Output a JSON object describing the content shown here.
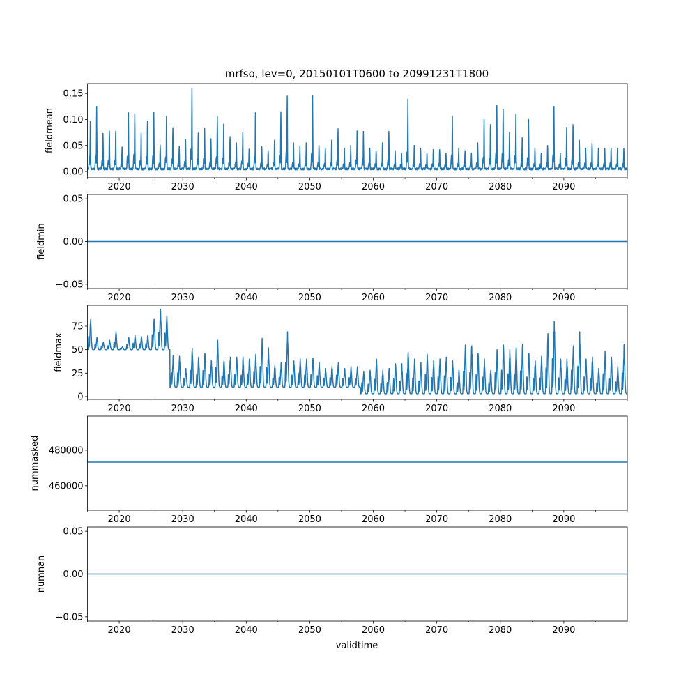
{
  "chart_data": {
    "type": "line",
    "title": "mrfso, lev=0, 20150101T0600 to 20991231T1800",
    "xlabel": "validtime",
    "xlim": [
      2015,
      2100
    ],
    "x_major_ticks": [
      2020,
      2030,
      2040,
      2050,
      2060,
      2070,
      2080,
      2090
    ],
    "x_tick_labels": [
      "2020",
      "2030",
      "2040",
      "2050",
      "2060",
      "2070",
      "2080",
      "2090"
    ],
    "x_minor_ticks": [
      2015,
      2025,
      2035,
      2045,
      2055,
      2065,
      2075,
      2085,
      2095,
      2100
    ],
    "line_color": "#1f77b4",
    "panels": [
      {
        "ylabel": "fieldmean",
        "ylim": [
          -0.012,
          0.169
        ],
        "yticks": [
          0.0,
          0.05,
          0.1,
          0.15
        ],
        "ytick_labels": [
          "0.00",
          "0.05",
          "0.10",
          "0.15"
        ],
        "kind": "seasonal",
        "baseline": 0.003,
        "years": [
          2015,
          2016,
          2017,
          2018,
          2019,
          2020,
          2021,
          2022,
          2023,
          2024,
          2025,
          2026,
          2027,
          2028,
          2029,
          2030,
          2031,
          2032,
          2033,
          2034,
          2035,
          2036,
          2037,
          2038,
          2039,
          2040,
          2041,
          2042,
          2043,
          2044,
          2045,
          2046,
          2047,
          2048,
          2049,
          2050,
          2051,
          2052,
          2053,
          2054,
          2055,
          2056,
          2057,
          2058,
          2059,
          2060,
          2061,
          2062,
          2063,
          2064,
          2065,
          2066,
          2067,
          2068,
          2069,
          2070,
          2071,
          2072,
          2073,
          2074,
          2075,
          2076,
          2077,
          2078,
          2079,
          2080,
          2081,
          2082,
          2083,
          2084,
          2085,
          2086,
          2087,
          2088,
          2089,
          2090,
          2091,
          2092,
          2093,
          2094,
          2095,
          2096,
          2097,
          2098,
          2099
        ],
        "yearly_peak": [
          0.096,
          0.125,
          0.073,
          0.078,
          0.077,
          0.047,
          0.113,
          0.111,
          0.074,
          0.097,
          0.114,
          0.051,
          0.106,
          0.084,
          0.049,
          0.061,
          0.16,
          0.074,
          0.083,
          0.063,
          0.106,
          0.091,
          0.067,
          0.055,
          0.075,
          0.043,
          0.113,
          0.048,
          0.04,
          0.06,
          0.115,
          0.145,
          0.055,
          0.048,
          0.055,
          0.146,
          0.05,
          0.045,
          0.06,
          0.082,
          0.045,
          0.05,
          0.078,
          0.077,
          0.045,
          0.04,
          0.055,
          0.077,
          0.04,
          0.035,
          0.139,
          0.05,
          0.045,
          0.035,
          0.042,
          0.042,
          0.035,
          0.106,
          0.045,
          0.04,
          0.035,
          0.055,
          0.1,
          0.09,
          0.127,
          0.12,
          0.075,
          0.11,
          0.065,
          0.1,
          0.045,
          0.035,
          0.05,
          0.125,
          0.035,
          0.085,
          0.09,
          0.06,
          0.045,
          0.055,
          0.045,
          0.045,
          0.045,
          0.045,
          0.045
        ]
      },
      {
        "ylabel": "fieldmin",
        "ylim": [
          -0.055,
          0.055
        ],
        "yticks": [
          -0.05,
          0.0,
          0.05
        ],
        "ytick_labels": [
          "−0.05",
          "0.00",
          "0.05"
        ],
        "kind": "constant",
        "value": 0.0
      },
      {
        "ylabel": "fieldmax",
        "ylim": [
          -3,
          97.3
        ],
        "yticks": [
          0,
          25,
          50,
          75
        ],
        "ytick_labels": [
          "0",
          "25",
          "50",
          "75"
        ],
        "kind": "seasonal",
        "baseline_periods": [
          {
            "from": 2015,
            "to": 2028,
            "value": 50
          },
          {
            "from": 2028,
            "to": 2058,
            "value": 10
          },
          {
            "from": 2058,
            "to": 2100,
            "value": 3
          }
        ],
        "years": [
          2015,
          2016,
          2017,
          2018,
          2019,
          2020,
          2021,
          2022,
          2023,
          2024,
          2025,
          2026,
          2027,
          2028,
          2029,
          2030,
          2031,
          2032,
          2033,
          2034,
          2035,
          2036,
          2037,
          2038,
          2039,
          2040,
          2041,
          2042,
          2043,
          2044,
          2045,
          2046,
          2047,
          2048,
          2049,
          2050,
          2051,
          2052,
          2053,
          2054,
          2055,
          2056,
          2057,
          2058,
          2059,
          2060,
          2061,
          2062,
          2063,
          2064,
          2065,
          2066,
          2067,
          2068,
          2069,
          2070,
          2071,
          2072,
          2073,
          2074,
          2075,
          2076,
          2077,
          2078,
          2079,
          2080,
          2081,
          2082,
          2083,
          2084,
          2085,
          2086,
          2087,
          2088,
          2089,
          2090,
          2091,
          2092,
          2093,
          2094,
          2095,
          2096,
          2097,
          2098,
          2099
        ],
        "yearly_peak": [
          82,
          63,
          58,
          60,
          69,
          53,
          63,
          65,
          64,
          65,
          83,
          93,
          86,
          44,
          43,
          30,
          51,
          42,
          46,
          38,
          60,
          38,
          42,
          42,
          42,
          40,
          45,
          62,
          52,
          33,
          36,
          69,
          38,
          40,
          40,
          41,
          36,
          30,
          32,
          36,
          30,
          32,
          32,
          27,
          28,
          40,
          28,
          30,
          35,
          35,
          47,
          40,
          36,
          45,
          38,
          40,
          42,
          38,
          28,
          55,
          54,
          46,
          40,
          28,
          50,
          55,
          50,
          52,
          56,
          46,
          38,
          43,
          67,
          80,
          40,
          40,
          54,
          69,
          40,
          42,
          30,
          48,
          42,
          32,
          56
        ]
      },
      {
        "ylabel": "nummasked",
        "ylim": [
          446200,
          499200
        ],
        "yticks": [
          460000,
          480000
        ],
        "ytick_labels": [
          "460000",
          "480000"
        ],
        "kind": "constant",
        "value": 473300
      },
      {
        "ylabel": "numnan",
        "ylim": [
          -0.055,
          0.055
        ],
        "yticks": [
          -0.05,
          0.0,
          0.05
        ],
        "ytick_labels": [
          "−0.05",
          "0.00",
          "0.05"
        ],
        "kind": "constant",
        "value": 0.0
      }
    ]
  }
}
